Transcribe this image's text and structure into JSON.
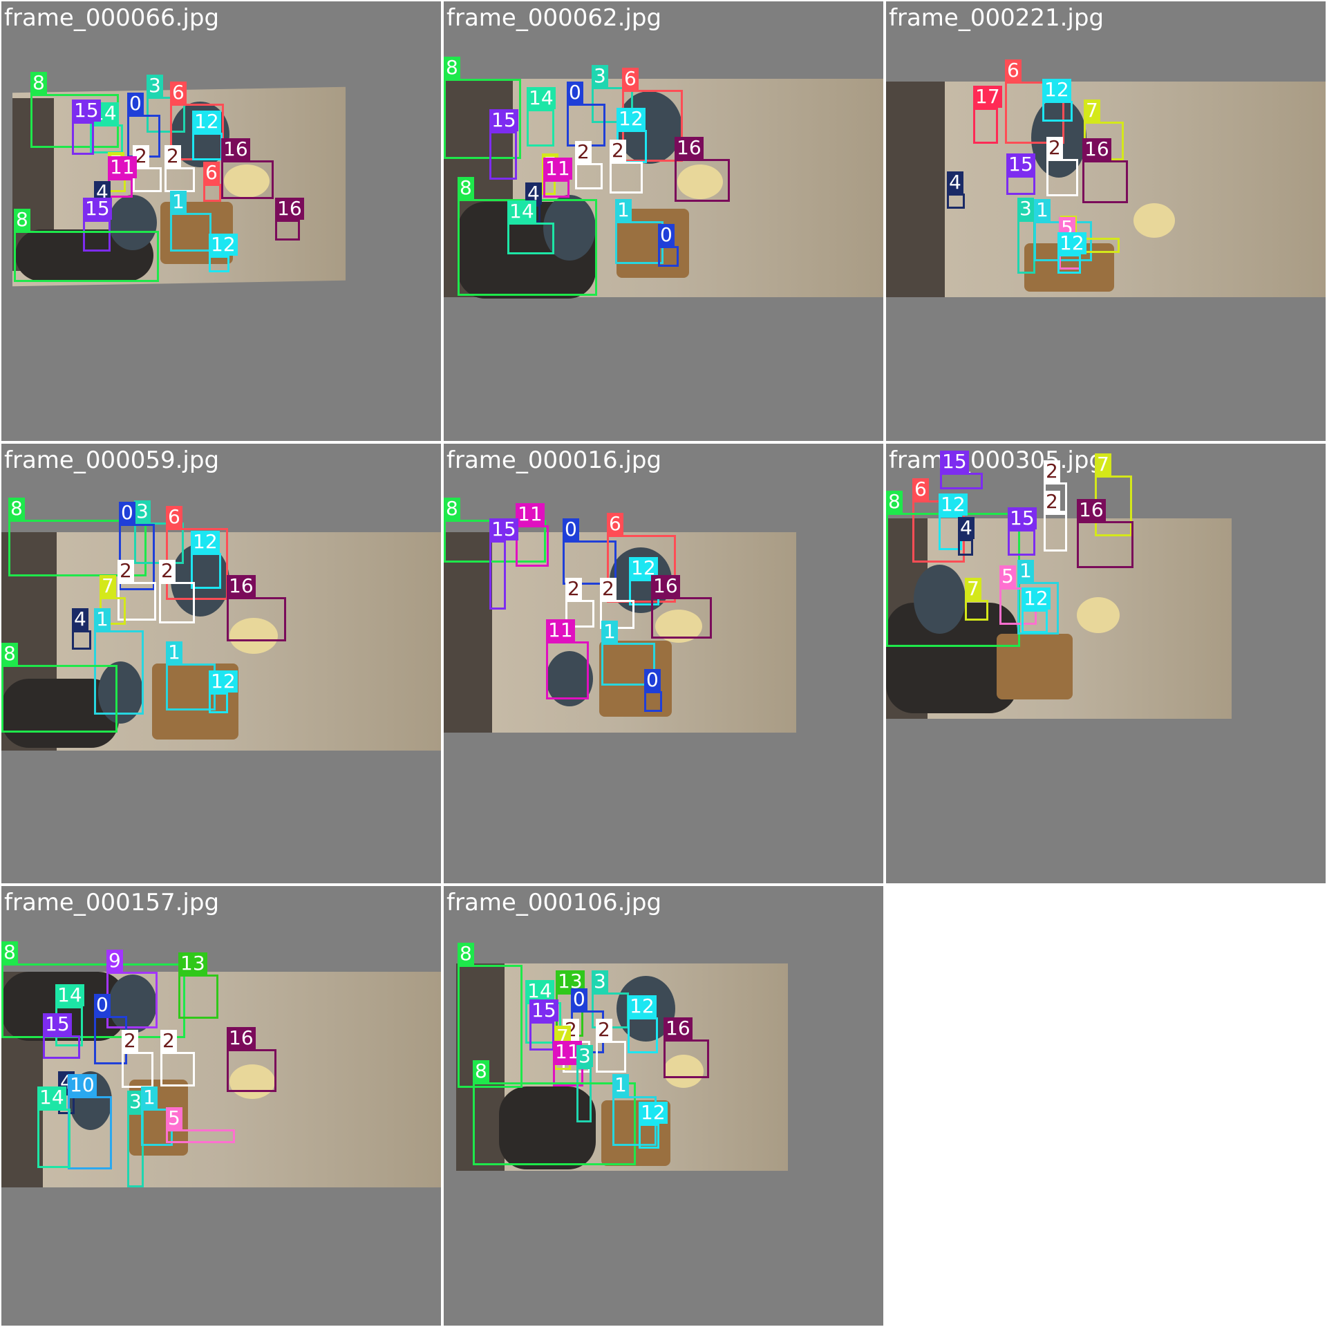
{
  "frames": [
    {
      "name": "frame_000066.jpg"
    },
    {
      "name": "frame_000062.jpg"
    },
    {
      "name": "frame_000221.jpg"
    },
    {
      "name": "frame_000059.jpg"
    },
    {
      "name": "frame_000016.jpg"
    },
    {
      "name": "frame_000305.jpg"
    },
    {
      "name": "frame_000157.jpg"
    },
    {
      "name": "frame_000106.jpg"
    }
  ],
  "label_colors": {
    "0": "#1f3fd8",
    "1": "#27d6e0",
    "2": "#ffffff",
    "3": "#1fd6b0",
    "4": "#1a2a66",
    "5": "#ff6fd0",
    "6": "#ff4d55",
    "7": "#d4e81a",
    "8": "#1ee84b",
    "9": "#a335ff",
    "10": "#2aa8f0",
    "11": "#e010c0",
    "12": "#1ce6f2",
    "13": "#30c81a",
    "14": "#1de6a6",
    "15": "#7d2cf0",
    "16": "#7a0b5a",
    "17": "#ff2a55"
  },
  "detections": [
    [
      {
        "c": "8"
      },
      {
        "c": "14"
      },
      {
        "c": "15"
      },
      {
        "c": "3"
      },
      {
        "c": "0"
      },
      {
        "c": "6"
      },
      {
        "c": "12"
      },
      {
        "c": "16"
      },
      {
        "c": "2"
      },
      {
        "c": "2"
      },
      {
        "c": "7"
      },
      {
        "c": "6"
      },
      {
        "c": "11"
      },
      {
        "c": "4"
      },
      {
        "c": "15"
      },
      {
        "c": "1"
      },
      {
        "c": "8"
      },
      {
        "c": "12"
      },
      {
        "c": "16"
      }
    ],
    [
      {
        "c": "8"
      },
      {
        "c": "3"
      },
      {
        "c": "6"
      },
      {
        "c": "14"
      },
      {
        "c": "0"
      },
      {
        "c": "15"
      },
      {
        "c": "12"
      },
      {
        "c": "16"
      },
      {
        "c": "2"
      },
      {
        "c": "2"
      },
      {
        "c": "7"
      },
      {
        "c": "11"
      },
      {
        "c": "8"
      },
      {
        "c": "4"
      },
      {
        "c": "14"
      },
      {
        "c": "1"
      },
      {
        "c": "0"
      }
    ],
    [
      {
        "c": "6"
      },
      {
        "c": "17"
      },
      {
        "c": "12"
      },
      {
        "c": "7"
      },
      {
        "c": "2"
      },
      {
        "c": "16"
      },
      {
        "c": "15"
      },
      {
        "c": "4"
      },
      {
        "c": "3"
      },
      {
        "c": "1"
      },
      {
        "c": "7"
      },
      {
        "c": "5"
      },
      {
        "c": "12"
      }
    ],
    [
      {
        "c": "8"
      },
      {
        "c": "3"
      },
      {
        "c": "6"
      },
      {
        "c": "0"
      },
      {
        "c": "12"
      },
      {
        "c": "16"
      },
      {
        "c": "2"
      },
      {
        "c": "2"
      },
      {
        "c": "7"
      },
      {
        "c": "4"
      },
      {
        "c": "1"
      },
      {
        "c": "8"
      },
      {
        "c": "1"
      },
      {
        "c": "12"
      }
    ],
    [
      {
        "c": "8"
      },
      {
        "c": "11"
      },
      {
        "c": "15"
      },
      {
        "c": "0"
      },
      {
        "c": "6"
      },
      {
        "c": "12"
      },
      {
        "c": "16"
      },
      {
        "c": "2"
      },
      {
        "c": "2"
      },
      {
        "c": "11"
      },
      {
        "c": "1"
      },
      {
        "c": "0"
      }
    ],
    [
      {
        "c": "15"
      },
      {
        "c": "7"
      },
      {
        "c": "2"
      },
      {
        "c": "2"
      },
      {
        "c": "16"
      },
      {
        "c": "6"
      },
      {
        "c": "8"
      },
      {
        "c": "12"
      },
      {
        "c": "15"
      },
      {
        "c": "4"
      },
      {
        "c": "1"
      },
      {
        "c": "5"
      },
      {
        "c": "7"
      },
      {
        "c": "12"
      }
    ],
    [
      {
        "c": "8"
      },
      {
        "c": "9"
      },
      {
        "c": "13"
      },
      {
        "c": "14"
      },
      {
        "c": "0"
      },
      {
        "c": "15"
      },
      {
        "c": "2"
      },
      {
        "c": "2"
      },
      {
        "c": "16"
      },
      {
        "c": "4"
      },
      {
        "c": "10"
      },
      {
        "c": "14"
      },
      {
        "c": "3"
      },
      {
        "c": "1"
      },
      {
        "c": "5"
      }
    ],
    [
      {
        "c": "8"
      },
      {
        "c": "3"
      },
      {
        "c": "13"
      },
      {
        "c": "14"
      },
      {
        "c": "0"
      },
      {
        "c": "15"
      },
      {
        "c": "12"
      },
      {
        "c": "16"
      },
      {
        "c": "2"
      },
      {
        "c": "2"
      },
      {
        "c": "7"
      },
      {
        "c": "11"
      },
      {
        "c": "3"
      },
      {
        "c": "8"
      },
      {
        "c": "1"
      },
      {
        "c": "12"
      }
    ]
  ]
}
